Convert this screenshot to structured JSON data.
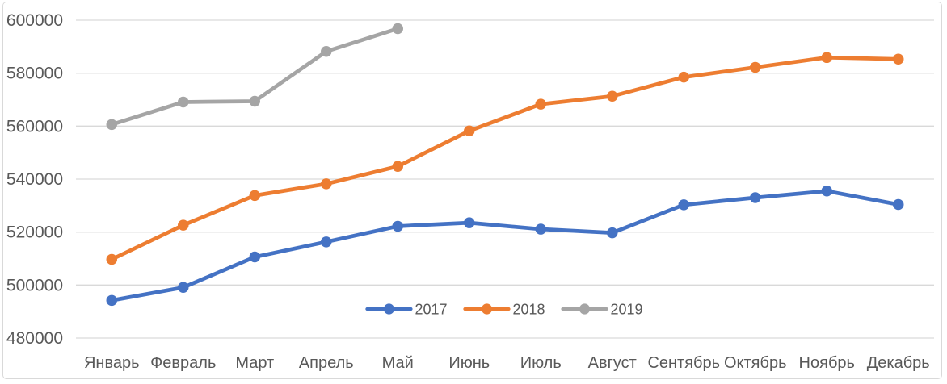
{
  "chart_data": {
    "type": "line",
    "title": "",
    "xlabel": "",
    "ylabel": "",
    "categories": [
      "Январь",
      "Февраль",
      "Март",
      "Апрель",
      "Май",
      "Июнь",
      "Июль",
      "Август",
      "Сентябрь",
      "Октябрь",
      "Ноябрь",
      "Декабрь"
    ],
    "series": [
      {
        "name": "2017",
        "color": "#4472C4",
        "values": [
          494200,
          499100,
          510600,
          516300,
          522200,
          523500,
          521100,
          519700,
          530300,
          533000,
          535500,
          530400
        ]
      },
      {
        "name": "2018",
        "color": "#ED7D31",
        "values": [
          509700,
          522600,
          533800,
          538200,
          544800,
          558200,
          568300,
          571300,
          578500,
          582200,
          585900,
          585300
        ]
      },
      {
        "name": "2019",
        "color": "#A5A5A5",
        "values": [
          560600,
          569100,
          569400,
          588200,
          596800,
          null,
          null,
          null,
          null,
          null,
          null,
          null
        ]
      }
    ],
    "ylim": [
      480000,
      600000
    ],
    "y_ticks": [
      480000,
      500000,
      520000,
      540000,
      560000,
      580000,
      600000
    ],
    "y_tick_labels": [
      "480000",
      "500000",
      "520000",
      "540000",
      "560000",
      "580000",
      "600000"
    ],
    "grid": "horizontal-only",
    "legend_position": "bottom-center-inside",
    "legend_labels": [
      "2017",
      "2018",
      "2019"
    ],
    "colors": {
      "gridline": "#D9D9D9",
      "axis_text": "#595959",
      "frame_border": "#D9D9D9",
      "background": "#FFFFFF"
    }
  }
}
